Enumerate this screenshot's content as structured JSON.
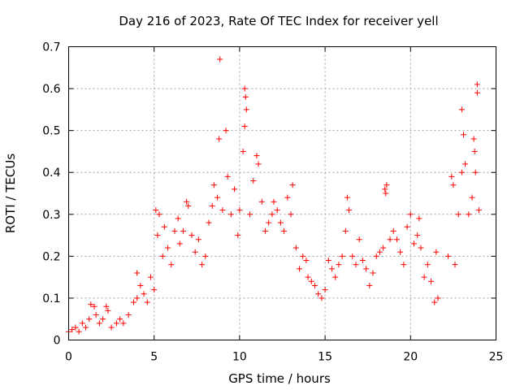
{
  "chart_data": {
    "type": "scatter",
    "title": "Day 216 of 2023, Rate Of TEC Index for receiver yell",
    "xlabel": "GPS time / hours",
    "ylabel": "ROTI / TECUs",
    "xlim": [
      0,
      25
    ],
    "ylim": [
      0,
      0.7
    ],
    "xticks": [
      0,
      5,
      10,
      15,
      20,
      25
    ],
    "xtick_labels": [
      "0",
      "5",
      "10",
      "15",
      "20",
      "25"
    ],
    "yticks": [
      0,
      0.1,
      0.2,
      0.3,
      0.4,
      0.5,
      0.6,
      0.7
    ],
    "ytick_labels": [
      "0",
      "0.1",
      "0.2",
      "0.3",
      "0.4",
      "0.5",
      "0.6",
      "0.7"
    ],
    "grid": true,
    "marker": "+",
    "color": "#ff0000",
    "series": [
      {
        "points": [
          [
            0.0,
            0.02
          ],
          [
            0.2,
            0.025
          ],
          [
            0.4,
            0.03
          ],
          [
            0.6,
            0.02
          ],
          [
            0.8,
            0.04
          ],
          [
            1.0,
            0.03
          ],
          [
            1.2,
            0.05
          ],
          [
            1.3,
            0.085
          ],
          [
            1.5,
            0.08
          ],
          [
            1.6,
            0.06
          ],
          [
            1.8,
            0.04
          ],
          [
            2.0,
            0.05
          ],
          [
            2.2,
            0.08
          ],
          [
            2.3,
            0.07
          ],
          [
            2.5,
            0.03
          ],
          [
            2.8,
            0.04
          ],
          [
            3.0,
            0.05
          ],
          [
            3.2,
            0.04
          ],
          [
            3.5,
            0.06
          ],
          [
            3.8,
            0.09
          ],
          [
            4.0,
            0.1
          ],
          [
            4.0,
            0.16
          ],
          [
            4.2,
            0.13
          ],
          [
            4.4,
            0.11
          ],
          [
            4.6,
            0.09
          ],
          [
            4.8,
            0.15
          ],
          [
            5.0,
            0.12
          ],
          [
            5.1,
            0.31
          ],
          [
            5.2,
            0.25
          ],
          [
            5.3,
            0.3
          ],
          [
            5.5,
            0.2
          ],
          [
            5.6,
            0.27
          ],
          [
            5.8,
            0.22
          ],
          [
            6.0,
            0.18
          ],
          [
            6.2,
            0.26
          ],
          [
            6.4,
            0.29
          ],
          [
            6.5,
            0.23
          ],
          [
            6.7,
            0.26
          ],
          [
            6.9,
            0.33
          ],
          [
            7.0,
            0.32
          ],
          [
            7.2,
            0.25
          ],
          [
            7.4,
            0.21
          ],
          [
            7.6,
            0.24
          ],
          [
            7.8,
            0.18
          ],
          [
            8.0,
            0.2
          ],
          [
            8.2,
            0.28
          ],
          [
            8.4,
            0.32
          ],
          [
            8.5,
            0.37
          ],
          [
            8.7,
            0.34
          ],
          [
            8.8,
            0.48
          ],
          [
            8.85,
            0.67
          ],
          [
            9.0,
            0.31
          ],
          [
            9.2,
            0.5
          ],
          [
            9.3,
            0.39
          ],
          [
            9.5,
            0.3
          ],
          [
            9.7,
            0.36
          ],
          [
            9.9,
            0.25
          ],
          [
            10.0,
            0.31
          ],
          [
            10.2,
            0.45
          ],
          [
            10.3,
            0.6
          ],
          [
            10.35,
            0.58
          ],
          [
            10.3,
            0.51
          ],
          [
            10.4,
            0.55
          ],
          [
            10.6,
            0.3
          ],
          [
            10.8,
            0.38
          ],
          [
            11.0,
            0.44
          ],
          [
            11.1,
            0.42
          ],
          [
            11.3,
            0.33
          ],
          [
            11.5,
            0.26
          ],
          [
            11.7,
            0.28
          ],
          [
            11.9,
            0.3
          ],
          [
            12.0,
            0.33
          ],
          [
            12.2,
            0.31
          ],
          [
            12.4,
            0.28
          ],
          [
            12.6,
            0.26
          ],
          [
            12.8,
            0.34
          ],
          [
            13.0,
            0.3
          ],
          [
            13.1,
            0.37
          ],
          [
            13.3,
            0.22
          ],
          [
            13.5,
            0.17
          ],
          [
            13.7,
            0.2
          ],
          [
            13.9,
            0.19
          ],
          [
            14.0,
            0.15
          ],
          [
            14.2,
            0.14
          ],
          [
            14.4,
            0.13
          ],
          [
            14.6,
            0.11
          ],
          [
            14.8,
            0.1
          ],
          [
            15.0,
            0.12
          ],
          [
            15.2,
            0.19
          ],
          [
            15.4,
            0.17
          ],
          [
            15.6,
            0.15
          ],
          [
            15.8,
            0.18
          ],
          [
            16.0,
            0.2
          ],
          [
            16.2,
            0.26
          ],
          [
            16.3,
            0.34
          ],
          [
            16.4,
            0.31
          ],
          [
            16.6,
            0.2
          ],
          [
            16.8,
            0.18
          ],
          [
            17.0,
            0.24
          ],
          [
            17.2,
            0.19
          ],
          [
            17.4,
            0.17
          ],
          [
            17.6,
            0.13
          ],
          [
            17.8,
            0.16
          ],
          [
            18.0,
            0.2
          ],
          [
            18.2,
            0.21
          ],
          [
            18.4,
            0.22
          ],
          [
            18.5,
            0.36
          ],
          [
            18.55,
            0.35
          ],
          [
            18.6,
            0.37
          ],
          [
            18.8,
            0.24
          ],
          [
            19.0,
            0.26
          ],
          [
            19.2,
            0.24
          ],
          [
            19.4,
            0.21
          ],
          [
            19.6,
            0.18
          ],
          [
            19.8,
            0.27
          ],
          [
            20.0,
            0.3
          ],
          [
            20.2,
            0.23
          ],
          [
            20.4,
            0.25
          ],
          [
            20.5,
            0.29
          ],
          [
            20.6,
            0.22
          ],
          [
            20.8,
            0.15
          ],
          [
            21.0,
            0.18
          ],
          [
            21.2,
            0.14
          ],
          [
            21.4,
            0.09
          ],
          [
            21.5,
            0.21
          ],
          [
            21.6,
            0.1
          ],
          [
            22.2,
            0.2
          ],
          [
            22.4,
            0.39
          ],
          [
            22.5,
            0.37
          ],
          [
            22.6,
            0.18
          ],
          [
            22.8,
            0.3
          ],
          [
            23.0,
            0.4
          ],
          [
            23.0,
            0.55
          ],
          [
            23.1,
            0.49
          ],
          [
            23.2,
            0.42
          ],
          [
            23.4,
            0.3
          ],
          [
            23.6,
            0.34
          ],
          [
            23.7,
            0.48
          ],
          [
            23.75,
            0.45
          ],
          [
            23.8,
            0.4
          ],
          [
            23.9,
            0.61
          ],
          [
            23.9,
            0.59
          ],
          [
            24.0,
            0.31
          ]
        ]
      }
    ]
  }
}
